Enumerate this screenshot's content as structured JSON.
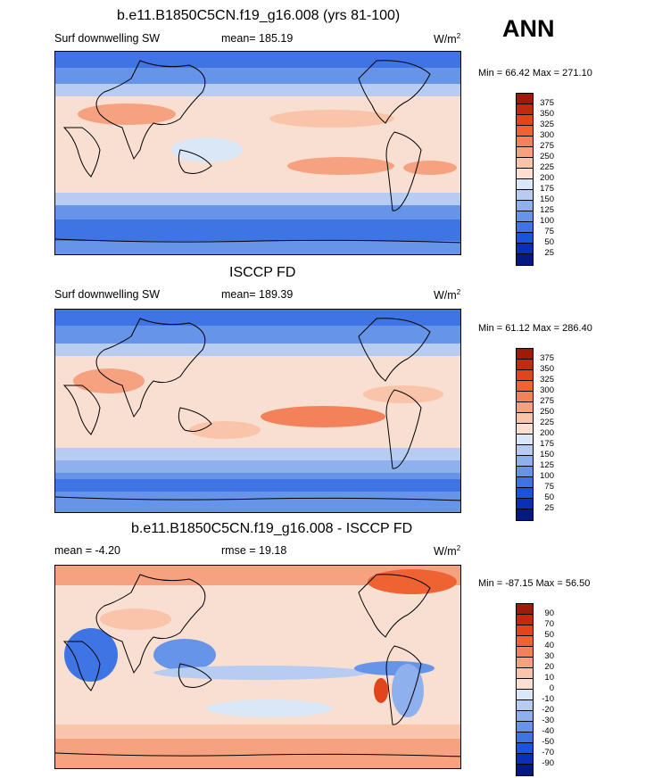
{
  "season": "ANN",
  "panel_model": {
    "title": "b.e11.B1850C5CN.f19_g16.008 (yrs 81-100)",
    "variable": "Surf downwelling SW",
    "stat": "mean= 185.19",
    "units": "W/m",
    "units_sup": "2",
    "minmax": "Min =  66.42 Max = 271.10"
  },
  "panel_obs": {
    "title": "ISCCP FD",
    "variable": "Surf downwelling SW",
    "stat": "mean= 189.39",
    "units": "W/m",
    "units_sup": "2",
    "minmax": "Min =  61.12 Max = 286.40"
  },
  "panel_diff": {
    "title": "b.e11.B1850C5CN.f19_g16.008 - ISCCP FD",
    "mean": "mean =  -4.20",
    "rmse": "rmse =  19.18",
    "units": "W/m",
    "units_sup": "2",
    "minmax": "Min = -87.15 Max =  56.50"
  },
  "colorbar_abs": {
    "levels": [
      "375",
      "350",
      "325",
      "300",
      "275",
      "250",
      "225",
      "200",
      "175",
      "150",
      "125",
      "100",
      "75",
      "50",
      "25"
    ],
    "colors": [
      "#a01a0a",
      "#c22a0e",
      "#e0451c",
      "#ef6333",
      "#f3825a",
      "#f6a280",
      "#f9c4aa",
      "#fbe0d2",
      "#d9e7f7",
      "#b6cdf1",
      "#8eb0ec",
      "#6694e8",
      "#3f74e4",
      "#1b54dc",
      "#0a30b8",
      "#041a80"
    ]
  },
  "colorbar_diff": {
    "levels": [
      "90",
      "70",
      "50",
      "40",
      "30",
      "20",
      "10",
      "0",
      "-10",
      "-20",
      "-30",
      "-40",
      "-50",
      "-70",
      "-90"
    ],
    "colors": [
      "#a01a0a",
      "#c22a0e",
      "#e0451c",
      "#ef6333",
      "#f3825a",
      "#f6a280",
      "#f9c4aa",
      "#fbe0d2",
      "#d9e7f7",
      "#b6cdf1",
      "#8eb0ec",
      "#6694e8",
      "#3f74e4",
      "#1b54dc",
      "#0a30b8",
      "#041a80"
    ]
  }
}
